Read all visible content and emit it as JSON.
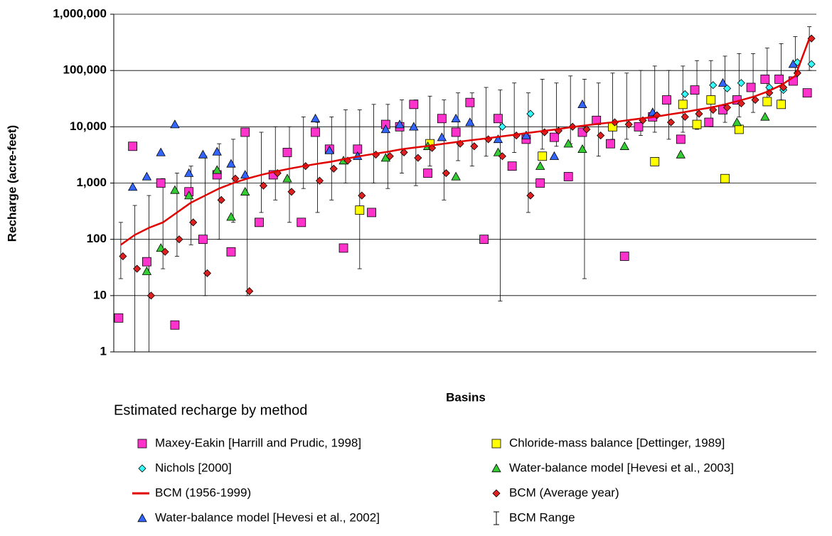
{
  "chart_data": {
    "type": "scatter",
    "x_label": "Basins",
    "y_label": "Recharge (acre-feet)",
    "legend_title": "Estimated recharge by method",
    "log_scale": true,
    "grid": true,
    "ylim": [
      1,
      1000000
    ],
    "yticks": [
      1,
      10,
      100,
      {
        "value": 1000,
        "label": "1,000"
      },
      {
        "value": 10000,
        "label": "10,000"
      },
      {
        "value": 100000,
        "label": "100,000"
      },
      {
        "value": 1000000,
        "label": "1,000,000"
      }
    ],
    "categories": [
      null,
      null,
      null,
      null,
      null,
      null,
      null,
      null,
      null,
      null,
      null,
      null,
      null,
      null,
      null,
      null,
      null,
      null,
      null,
      null,
      null,
      null,
      null,
      null,
      null,
      null,
      null,
      null,
      null,
      null,
      null,
      null,
      null,
      null,
      null,
      null,
      null,
      null,
      null,
      null,
      null,
      null,
      null,
      null,
      null,
      null,
      null,
      null,
      null,
      null
    ],
    "series": [
      {
        "name": "Maxey-Eakin [Harrill and Prudic, 1998]",
        "mark": "square",
        "color": "#ff33cc",
        "values": [
          4,
          4500,
          40,
          1000,
          3,
          700,
          100,
          1400,
          60,
          8000,
          200,
          1400,
          3500,
          200,
          8000,
          4000,
          70,
          4000,
          300,
          11000,
          10000,
          25000,
          1500,
          14000,
          8000,
          27000,
          100,
          14000,
          2000,
          6000,
          1000,
          6500,
          1300,
          8000,
          13000,
          5000,
          50,
          10000,
          15000,
          30000,
          6000,
          45000,
          12000,
          20000,
          30000,
          50000,
          70000,
          70000,
          65000,
          40000
        ]
      },
      {
        "name": "Chloride-mass balance [Dettinger, 1989]",
        "mark": "square",
        "color": "#ffff00",
        "values": [
          null,
          null,
          null,
          null,
          null,
          null,
          null,
          null,
          null,
          null,
          null,
          null,
          null,
          null,
          null,
          null,
          null,
          330,
          null,
          null,
          null,
          null,
          5000,
          null,
          null,
          null,
          null,
          null,
          null,
          null,
          3000,
          null,
          null,
          null,
          null,
          10000,
          null,
          null,
          2400,
          null,
          25000,
          11000,
          30000,
          1200,
          9000,
          null,
          28000,
          25000,
          null,
          null
        ]
      },
      {
        "name": "Nichols [2000]",
        "mark": "diamond",
        "color": "#33ffff",
        "values": [
          null,
          null,
          null,
          null,
          null,
          null,
          null,
          null,
          null,
          null,
          null,
          null,
          null,
          null,
          null,
          null,
          null,
          null,
          null,
          null,
          null,
          null,
          null,
          null,
          null,
          null,
          null,
          10000,
          null,
          17000,
          null,
          null,
          null,
          null,
          null,
          null,
          null,
          null,
          null,
          null,
          38000,
          null,
          55000,
          48000,
          60000,
          null,
          50000,
          45000,
          140000,
          130000
        ]
      },
      {
        "name": "Water-balance model [Hevesi et al., 2003]",
        "mark": "triangle",
        "color": "#33cc33",
        "values": [
          null,
          null,
          27,
          70,
          750,
          600,
          null,
          1700,
          250,
          700,
          null,
          null,
          1200,
          null,
          null,
          null,
          2500,
          null,
          null,
          2800,
          null,
          null,
          4500,
          null,
          1300,
          null,
          null,
          3500,
          null,
          null,
          2000,
          null,
          5000,
          4000,
          null,
          null,
          4500,
          null,
          null,
          null,
          3200,
          null,
          null,
          null,
          12000,
          null,
          15000,
          null,
          null,
          null
        ]
      },
      {
        "name": "BCM (1956-1999)",
        "mark": "line",
        "color": "#e00000",
        "values": [
          80,
          120,
          160,
          200,
          300,
          450,
          600,
          800,
          1000,
          1200,
          1400,
          1600,
          1800,
          2000,
          2200,
          2400,
          2700,
          3000,
          3300,
          3600,
          4000,
          4300,
          4600,
          5000,
          5400,
          5800,
          6200,
          6700,
          7200,
          7800,
          8400,
          9000,
          9800,
          10500,
          11300,
          12000,
          13000,
          14000,
          15000,
          16500,
          18000,
          20000,
          22000,
          25000,
          29000,
          34000,
          42000,
          55000,
          80000,
          370000
        ]
      },
      {
        "name": "BCM (Average year)",
        "mark": "diamond",
        "color": "#e02020",
        "values": [
          50,
          30,
          10,
          60,
          100,
          200,
          25,
          500,
          1200,
          12,
          900,
          1500,
          700,
          2000,
          1100,
          1800,
          2500,
          600,
          3200,
          3000,
          3500,
          2800,
          4200,
          1500,
          5000,
          4500,
          6000,
          3000,
          7000,
          600,
          8000,
          8500,
          10000,
          9000,
          7000,
          12000,
          11000,
          13000,
          16000,
          12000,
          15000,
          17000,
          20000,
          22000,
          26000,
          30000,
          40000,
          50000,
          90000,
          370000
        ]
      },
      {
        "name": "Water-balance model [Hevesi et al., 2002]",
        "mark": "triangle",
        "color": "#3366ff",
        "values": [
          null,
          850,
          1300,
          3500,
          11000,
          1500,
          3200,
          3600,
          2200,
          1400,
          null,
          null,
          null,
          null,
          14000,
          3800,
          null,
          3000,
          null,
          9000,
          11000,
          10000,
          null,
          6500,
          14000,
          12000,
          null,
          6000,
          null,
          7000,
          null,
          3000,
          null,
          25000,
          null,
          null,
          null,
          null,
          18000,
          null,
          null,
          null,
          null,
          60000,
          null,
          null,
          null,
          null,
          130000,
          null
        ]
      },
      {
        "name": "BCM Range",
        "mark": "range",
        "color": "#000000",
        "low": [
          20,
          1,
          1,
          30,
          50,
          80,
          10,
          100,
          200,
          10,
          300,
          500,
          200,
          800,
          300,
          500,
          1000,
          30,
          1000,
          800,
          1500,
          900,
          2000,
          500,
          2500,
          2000,
          3000,
          8,
          3500,
          300,
          4000,
          4500,
          5000,
          20,
          3000,
          6000,
          6000,
          7000,
          8000,
          6000,
          8000,
          9000,
          10000,
          12000,
          15000,
          18000,
          25000,
          30000,
          60000,
          100000
        ],
        "high": [
          200,
          400,
          600,
          1200,
          1500,
          2000,
          3000,
          5000,
          6000,
          8000,
          8000,
          10000,
          10000,
          15000,
          12000,
          15000,
          20000,
          20000,
          25000,
          25000,
          30000,
          30000,
          35000,
          30000,
          40000,
          40000,
          50000,
          45000,
          60000,
          40000,
          70000,
          60000,
          80000,
          70000,
          60000,
          90000,
          90000,
          100000,
          120000,
          100000,
          120000,
          150000,
          150000,
          180000,
          200000,
          200000,
          250000,
          300000,
          400000,
          600000
        ]
      }
    ]
  }
}
